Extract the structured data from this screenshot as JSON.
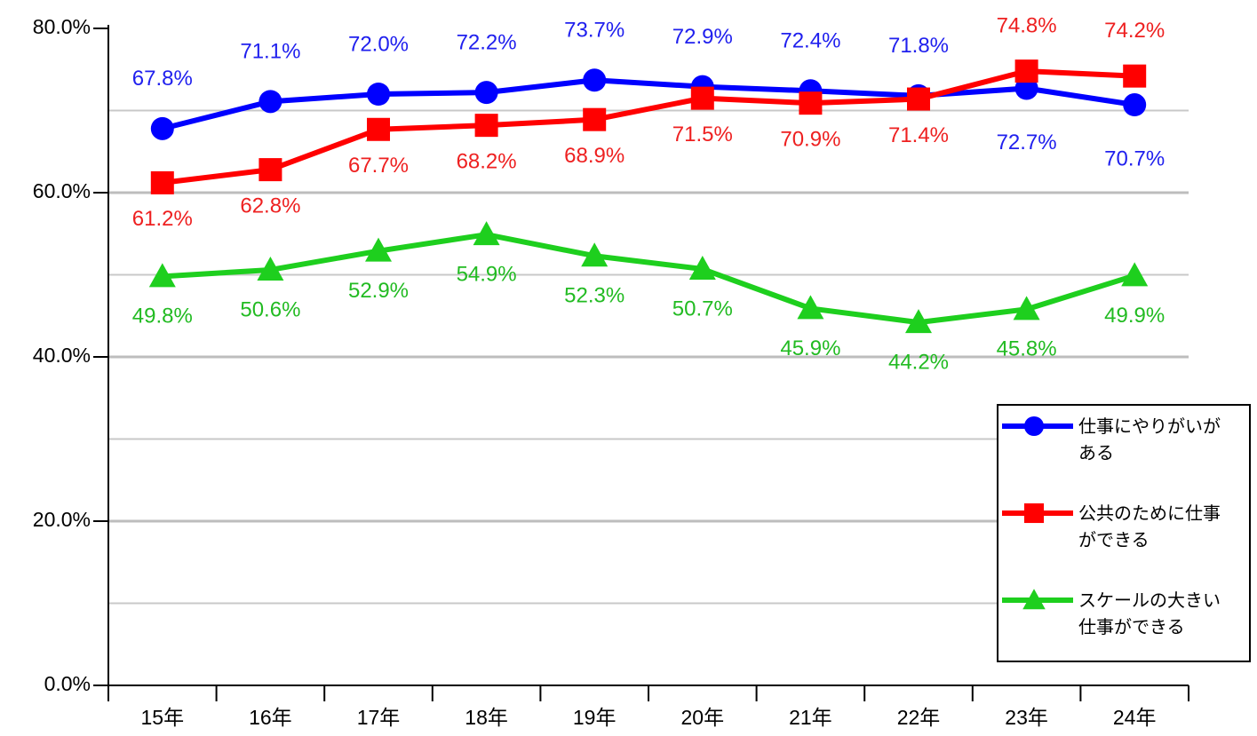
{
  "chart_data": {
    "type": "line",
    "categories": [
      "15年",
      "16年",
      "17年",
      "18年",
      "19年",
      "20年",
      "21年",
      "22年",
      "23年",
      "24年"
    ],
    "series": [
      {
        "name": "仕事にやりがいがある",
        "color": "#0000ff",
        "label_color": "#2020ee",
        "marker": "circle",
        "values": [
          67.8,
          71.1,
          72.0,
          72.2,
          73.7,
          72.9,
          72.4,
          71.8,
          72.7,
          70.7
        ],
        "value_labels": [
          "67.8%",
          "71.1%",
          "72.0%",
          "72.2%",
          "73.7%",
          "72.9%",
          "72.4%",
          "71.8%",
          "72.7%",
          "70.7%"
        ]
      },
      {
        "name": "公共のために仕事ができる",
        "color": "#ff0000",
        "label_color": "#ee2020",
        "marker": "square",
        "values": [
          61.2,
          62.8,
          67.7,
          68.2,
          68.9,
          71.5,
          70.9,
          71.4,
          74.8,
          74.2
        ],
        "value_labels": [
          "61.2%",
          "62.8%",
          "67.7%",
          "68.2%",
          "68.9%",
          "71.5%",
          "70.9%",
          "71.4%",
          "74.8%",
          "74.2%"
        ]
      },
      {
        "name": "スケールの大きい仕事ができる",
        "color": "#1ecf1e",
        "label_color": "#22bb22",
        "marker": "triangle",
        "values": [
          49.8,
          50.6,
          52.9,
          54.9,
          52.3,
          50.7,
          45.9,
          44.2,
          45.8,
          49.9
        ],
        "value_labels": [
          "49.8%",
          "50.6%",
          "52.9%",
          "54.9%",
          "52.3%",
          "50.7%",
          "45.9%",
          "44.2%",
          "45.8%",
          "49.9%"
        ]
      }
    ],
    "ylim": [
      0,
      80
    ],
    "yticks": [
      {
        "value": 0,
        "label": "0.0%"
      },
      {
        "value": 20,
        "label": "20.0%"
      },
      {
        "value": 40,
        "label": "40.0%"
      },
      {
        "value": 60,
        "label": "60.0%"
      },
      {
        "value": 80,
        "label": "80.0%"
      }
    ],
    "minor_yticks": [
      10,
      30,
      50,
      70
    ],
    "grid": true,
    "legend": "lower right"
  }
}
